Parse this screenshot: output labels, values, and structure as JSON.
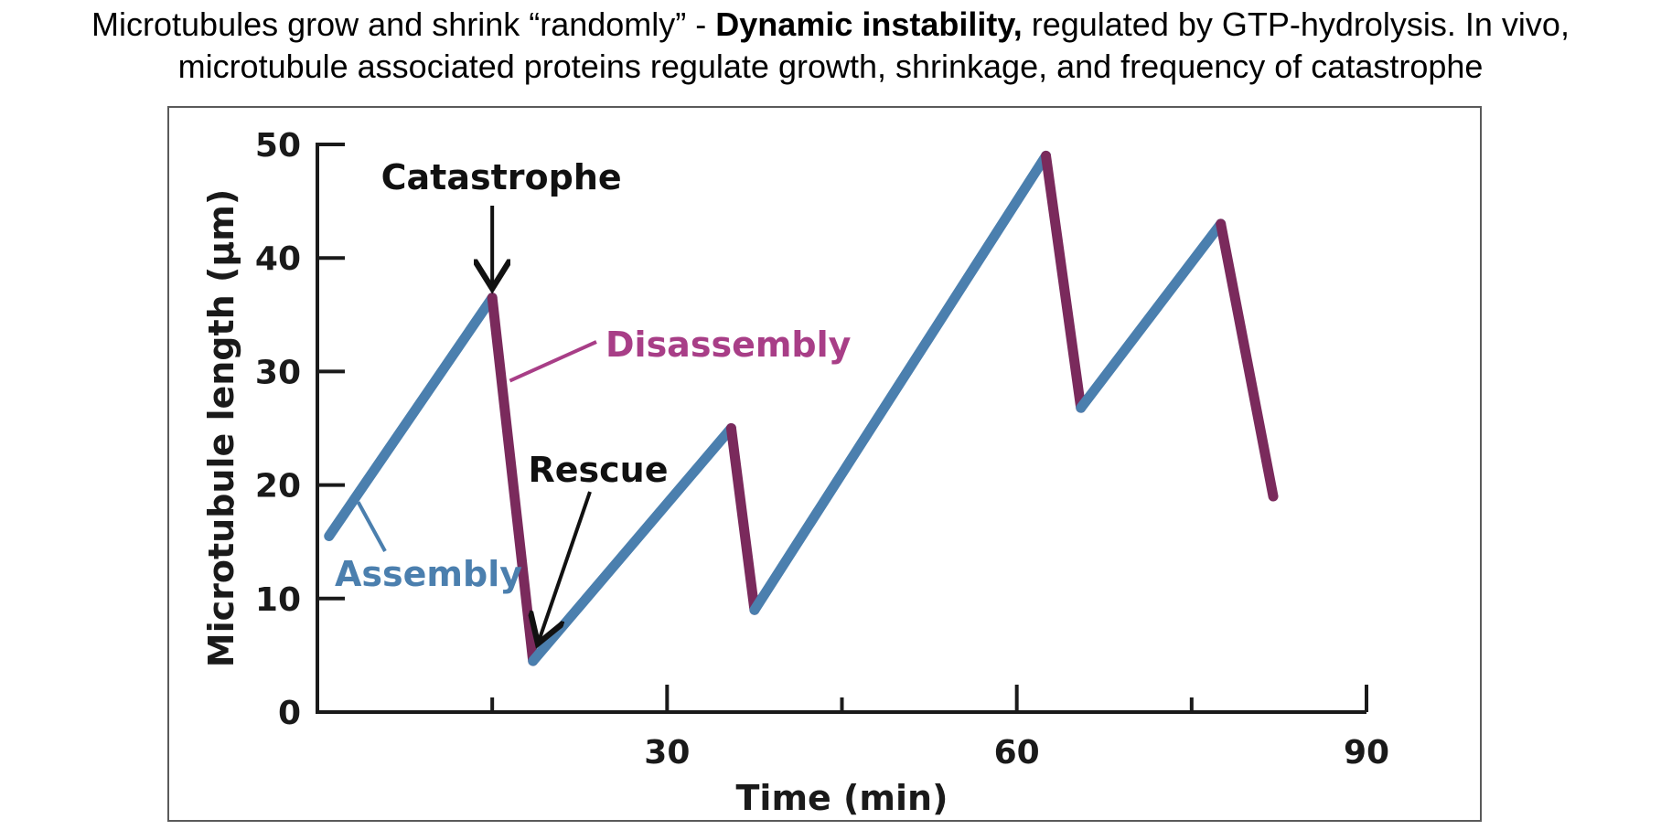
{
  "heading": {
    "line1_pre": "Microtubules grow and shrink “randomly” - ",
    "line1_bold": "Dynamic instability,",
    "line1_post": " regulated by GTP-hydrolysis. In vivo,",
    "line2": "microtubule associated proteins regulate growth, shrinkage, and frequency of catastrophe"
  },
  "colors": {
    "assembly": "#4b7fae",
    "disassembly": "#7a2a5c",
    "disassembly_label": "#a83e87",
    "axis": "#1a1a1a"
  },
  "chart_data": {
    "type": "line",
    "title": "",
    "xlabel": "Time (min)",
    "ylabel": "Microtubule length (µm)",
    "xlim": [
      0,
      90
    ],
    "ylim": [
      0,
      50
    ],
    "x_ticks": [
      0,
      15,
      30,
      45,
      60,
      75,
      90
    ],
    "x_tick_labels": [
      "30",
      "60",
      "90"
    ],
    "x_tick_label_values": [
      30,
      60,
      90
    ],
    "y_ticks": [
      0,
      10,
      20,
      30,
      40,
      50
    ],
    "y_tick_labels": [
      "0",
      "10",
      "20",
      "30",
      "40",
      "50"
    ],
    "grid": false,
    "series": [
      {
        "name": "Assembly",
        "points": [
          [
            1,
            15.5
          ],
          [
            15,
            36.5
          ]
        ]
      },
      {
        "name": "Disassembly",
        "points": [
          [
            15,
            36.5
          ],
          [
            18.5,
            4.5
          ]
        ]
      },
      {
        "name": "Assembly",
        "points": [
          [
            18.5,
            4.5
          ],
          [
            35.5,
            25
          ]
        ]
      },
      {
        "name": "Disassembly",
        "points": [
          [
            35.5,
            25
          ],
          [
            37.5,
            9
          ]
        ]
      },
      {
        "name": "Assembly",
        "points": [
          [
            37.5,
            9
          ],
          [
            62.5,
            49
          ]
        ]
      },
      {
        "name": "Disassembly",
        "points": [
          [
            62.5,
            49
          ],
          [
            65.5,
            26.8
          ]
        ]
      },
      {
        "name": "Assembly",
        "points": [
          [
            65.5,
            26.8
          ],
          [
            77.5,
            43
          ]
        ]
      },
      {
        "name": "Disassembly",
        "points": [
          [
            77.5,
            43
          ],
          [
            82,
            19
          ]
        ]
      }
    ],
    "annotations": [
      {
        "text": "Catastrophe",
        "target": [
          15,
          36.5
        ]
      },
      {
        "text": "Disassembly",
        "target": [
          16.2,
          29.5
        ]
      },
      {
        "text": "Rescue",
        "target": [
          18.7,
          5.2
        ]
      },
      {
        "text": "Assembly",
        "target": [
          3.5,
          18.5
        ]
      }
    ]
  }
}
